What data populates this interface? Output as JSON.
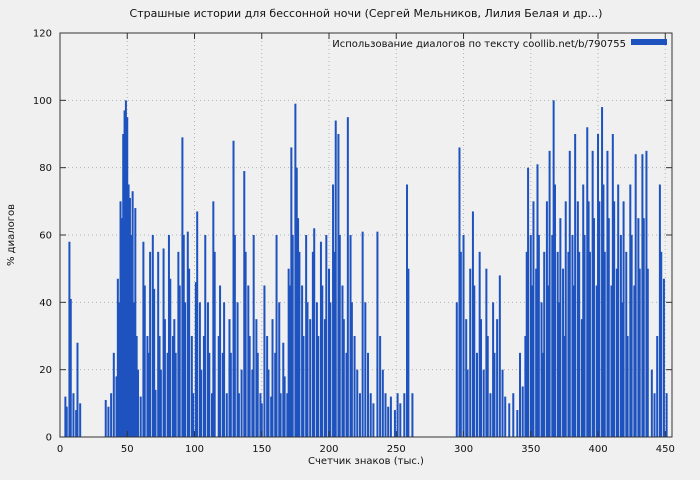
{
  "colors": {
    "bar": "#1e52be",
    "background": "#f0f0f0",
    "grid": "#b3b3b3",
    "axis": "#333333",
    "text": "#111111"
  },
  "chart_data": {
    "type": "bar",
    "title": "Страшные истории для бессонной ночи (Сергей Мельников, Лилия Белая и др...)",
    "legend": "Использование диалогов по тексту coollib.net/b/790755",
    "legend_position": "top-right",
    "xlabel": "Счетчик знаков (тыс.)",
    "ylabel": "% диалогов",
    "xlim": [
      0,
      455
    ],
    "ylim": [
      0,
      120
    ],
    "x_ticks": [
      0,
      50,
      100,
      150,
      200,
      250,
      300,
      350,
      400,
      450
    ],
    "y_ticks": [
      0,
      20,
      40,
      60,
      80,
      100,
      120
    ],
    "grid": true,
    "points": [
      [
        4,
        12
      ],
      [
        5,
        9
      ],
      [
        7,
        58
      ],
      [
        8,
        41
      ],
      [
        10,
        13
      ],
      [
        12,
        8
      ],
      [
        13,
        28
      ],
      [
        15,
        10
      ],
      [
        34,
        11
      ],
      [
        36,
        9
      ],
      [
        38,
        13
      ],
      [
        40,
        25
      ],
      [
        42,
        18
      ],
      [
        43,
        47
      ],
      [
        44,
        40
      ],
      [
        45,
        70
      ],
      [
        46,
        65
      ],
      [
        47,
        90
      ],
      [
        48,
        97
      ],
      [
        49,
        100
      ],
      [
        50,
        95
      ],
      [
        51,
        75
      ],
      [
        52,
        71
      ],
      [
        53,
        60
      ],
      [
        54,
        73
      ],
      [
        55,
        40
      ],
      [
        56,
        68
      ],
      [
        57,
        30
      ],
      [
        58,
        20
      ],
      [
        60,
        12
      ],
      [
        62,
        58
      ],
      [
        63,
        45
      ],
      [
        65,
        30
      ],
      [
        66,
        25
      ],
      [
        67,
        55
      ],
      [
        69,
        60
      ],
      [
        70,
        44
      ],
      [
        71,
        14
      ],
      [
        73,
        55
      ],
      [
        74,
        30
      ],
      [
        75,
        20
      ],
      [
        77,
        56
      ],
      [
        78,
        35
      ],
      [
        80,
        25
      ],
      [
        81,
        60
      ],
      [
        82,
        47
      ],
      [
        84,
        30
      ],
      [
        85,
        35
      ],
      [
        86,
        25
      ],
      [
        88,
        55
      ],
      [
        89,
        45
      ],
      [
        91,
        89
      ],
      [
        92,
        60
      ],
      [
        93,
        40
      ],
      [
        95,
        61
      ],
      [
        96,
        50
      ],
      [
        98,
        30
      ],
      [
        99,
        13
      ],
      [
        101,
        46
      ],
      [
        102,
        67
      ],
      [
        104,
        40
      ],
      [
        105,
        20
      ],
      [
        107,
        30
      ],
      [
        108,
        60
      ],
      [
        110,
        40
      ],
      [
        111,
        25
      ],
      [
        113,
        13
      ],
      [
        114,
        70
      ],
      [
        115,
        55
      ],
      [
        118,
        30
      ],
      [
        119,
        45
      ],
      [
        121,
        25
      ],
      [
        122,
        40
      ],
      [
        124,
        13
      ],
      [
        126,
        35
      ],
      [
        127,
        25
      ],
      [
        129,
        88
      ],
      [
        130,
        60
      ],
      [
        132,
        40
      ],
      [
        133,
        13
      ],
      [
        135,
        20
      ],
      [
        137,
        79
      ],
      [
        138,
        55
      ],
      [
        140,
        45
      ],
      [
        141,
        30
      ],
      [
        143,
        20
      ],
      [
        144,
        60
      ],
      [
        146,
        35
      ],
      [
        147,
        25
      ],
      [
        149,
        13
      ],
      [
        150,
        10
      ],
      [
        152,
        45
      ],
      [
        154,
        30
      ],
      [
        155,
        20
      ],
      [
        157,
        12
      ],
      [
        158,
        35
      ],
      [
        160,
        25
      ],
      [
        161,
        60
      ],
      [
        163,
        40
      ],
      [
        164,
        13
      ],
      [
        166,
        28
      ],
      [
        167,
        18
      ],
      [
        169,
        13
      ],
      [
        170,
        50
      ],
      [
        171,
        45
      ],
      [
        172,
        86
      ],
      [
        173,
        60
      ],
      [
        175,
        99
      ],
      [
        176,
        80
      ],
      [
        177,
        65
      ],
      [
        178,
        55
      ],
      [
        180,
        45
      ],
      [
        181,
        30
      ],
      [
        183,
        60
      ],
      [
        184,
        40
      ],
      [
        186,
        35
      ],
      [
        188,
        55
      ],
      [
        189,
        62
      ],
      [
        191,
        40
      ],
      [
        192,
        30
      ],
      [
        194,
        58
      ],
      [
        195,
        45
      ],
      [
        197,
        35
      ],
      [
        198,
        60
      ],
      [
        200,
        50
      ],
      [
        201,
        40
      ],
      [
        203,
        75
      ],
      [
        204,
        55
      ],
      [
        205,
        94
      ],
      [
        207,
        90
      ],
      [
        208,
        60
      ],
      [
        210,
        45
      ],
      [
        211,
        35
      ],
      [
        213,
        25
      ],
      [
        214,
        95
      ],
      [
        216,
        60
      ],
      [
        217,
        40
      ],
      [
        219,
        30
      ],
      [
        221,
        20
      ],
      [
        223,
        13
      ],
      [
        225,
        61
      ],
      [
        227,
        40
      ],
      [
        229,
        25
      ],
      [
        231,
        13
      ],
      [
        233,
        10
      ],
      [
        236,
        61
      ],
      [
        238,
        30
      ],
      [
        240,
        20
      ],
      [
        242,
        13
      ],
      [
        244,
        9
      ],
      [
        246,
        12
      ],
      [
        249,
        8
      ],
      [
        251,
        13
      ],
      [
        253,
        10
      ],
      [
        256,
        13
      ],
      [
        258,
        75
      ],
      [
        259,
        50
      ],
      [
        262,
        13
      ],
      [
        295,
        40
      ],
      [
        297,
        86
      ],
      [
        298,
        55
      ],
      [
        300,
        60
      ],
      [
        302,
        35
      ],
      [
        303,
        20
      ],
      [
        305,
        50
      ],
      [
        307,
        67
      ],
      [
        308,
        45
      ],
      [
        310,
        25
      ],
      [
        312,
        55
      ],
      [
        313,
        35
      ],
      [
        315,
        20
      ],
      [
        317,
        50
      ],
      [
        318,
        30
      ],
      [
        320,
        13
      ],
      [
        322,
        40
      ],
      [
        323,
        25
      ],
      [
        325,
        35
      ],
      [
        327,
        48
      ],
      [
        329,
        20
      ],
      [
        331,
        12
      ],
      [
        334,
        10
      ],
      [
        337,
        13
      ],
      [
        340,
        8
      ],
      [
        342,
        25
      ],
      [
        344,
        15
      ],
      [
        346,
        30
      ],
      [
        347,
        55
      ],
      [
        348,
        80
      ],
      [
        350,
        60
      ],
      [
        351,
        45
      ],
      [
        352,
        70
      ],
      [
        354,
        50
      ],
      [
        355,
        81
      ],
      [
        356,
        60
      ],
      [
        358,
        40
      ],
      [
        359,
        25
      ],
      [
        360,
        55
      ],
      [
        362,
        70
      ],
      [
        363,
        45
      ],
      [
        364,
        85
      ],
      [
        366,
        60
      ],
      [
        367,
        100
      ],
      [
        368,
        75
      ],
      [
        370,
        55
      ],
      [
        371,
        40
      ],
      [
        372,
        65
      ],
      [
        374,
        50
      ],
      [
        375,
        30
      ],
      [
        376,
        70
      ],
      [
        378,
        55
      ],
      [
        379,
        85
      ],
      [
        381,
        60
      ],
      [
        382,
        45
      ],
      [
        383,
        90
      ],
      [
        385,
        70
      ],
      [
        386,
        55
      ],
      [
        388,
        35
      ],
      [
        389,
        75
      ],
      [
        390,
        60
      ],
      [
        392,
        92
      ],
      [
        393,
        70
      ],
      [
        394,
        55
      ],
      [
        396,
        85
      ],
      [
        397,
        65
      ],
      [
        399,
        45
      ],
      [
        400,
        90
      ],
      [
        401,
        70
      ],
      [
        403,
        98
      ],
      [
        404,
        75
      ],
      [
        405,
        55
      ],
      [
        407,
        85
      ],
      [
        408,
        65
      ],
      [
        410,
        45
      ],
      [
        411,
        90
      ],
      [
        412,
        70
      ],
      [
        414,
        50
      ],
      [
        415,
        75
      ],
      [
        417,
        60
      ],
      [
        418,
        40
      ],
      [
        419,
        70
      ],
      [
        421,
        55
      ],
      [
        422,
        30
      ],
      [
        424,
        75
      ],
      [
        425,
        60
      ],
      [
        427,
        45
      ],
      [
        428,
        84
      ],
      [
        430,
        65
      ],
      [
        431,
        50
      ],
      [
        433,
        84
      ],
      [
        434,
        65
      ],
      [
        436,
        85
      ],
      [
        437,
        50
      ],
      [
        440,
        20
      ],
      [
        442,
        13
      ],
      [
        444,
        30
      ],
      [
        446,
        75
      ],
      [
        447,
        55
      ],
      [
        449,
        47
      ],
      [
        451,
        13
      ]
    ]
  }
}
